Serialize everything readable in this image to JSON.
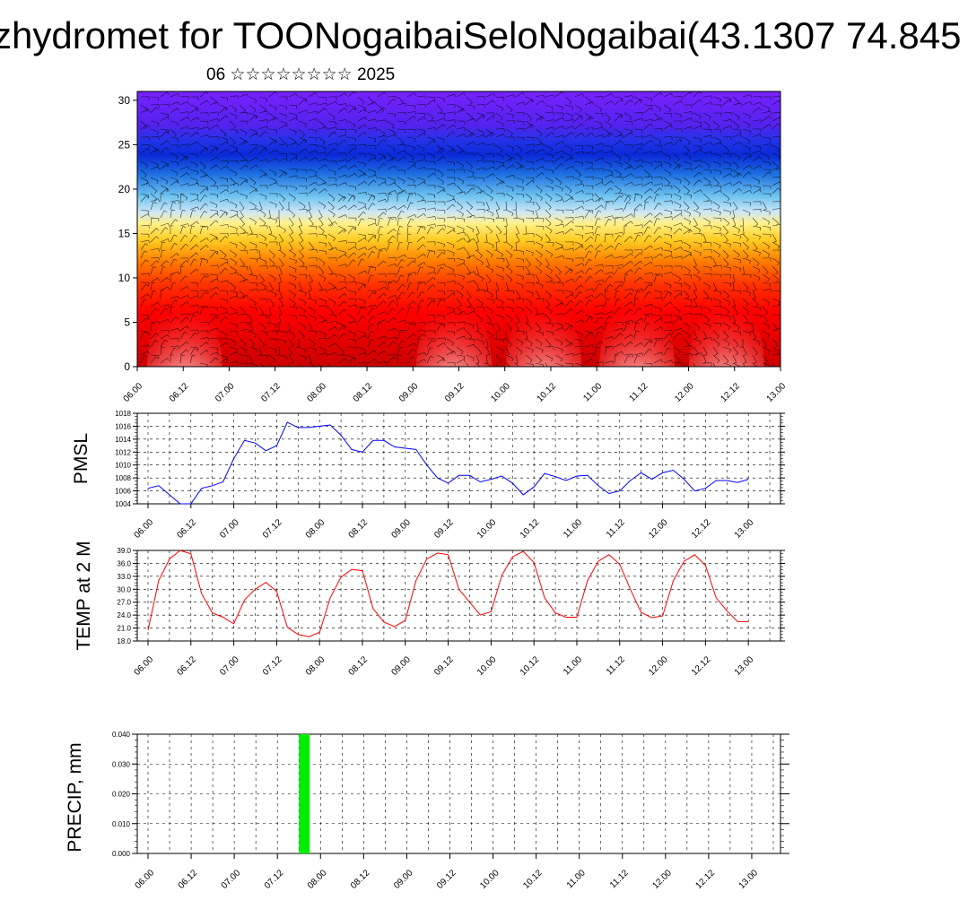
{
  "title": "zhydromet for TOONogaibaiSeloNogaibai(43.1307 74.845",
  "subtitle": "06 ☆☆☆☆☆☆☆☆ 2025",
  "colors": {
    "pmsl_line": "#0000ff",
    "temp_line": "#ff0000",
    "precip_bar": "#00ee00",
    "frame": "#000000",
    "grid": "#000000"
  },
  "time_ticks": [
    "06.00",
    "06.12",
    "07.00",
    "07.12",
    "08.00",
    "08.12",
    "09.00",
    "09.12",
    "10.00",
    "10.12",
    "11.00",
    "11.12",
    "12.00",
    "12.12",
    "13.00"
  ],
  "chart_data": [
    {
      "type": "heatmap",
      "name": "cross-section",
      "x_ticks": [
        "06.00",
        "06.12",
        "07.00",
        "07.12",
        "08.00",
        "08.12",
        "09.00",
        "09.12",
        "10.00",
        "10.12",
        "11.00",
        "11.12",
        "12.00",
        "12.12",
        "13.00"
      ],
      "y_ticks": [
        "0",
        "5",
        "10",
        "15",
        "20",
        "25",
        "30"
      ],
      "ylim": [
        0,
        31
      ],
      "xlim_hours": [
        0,
        168
      ],
      "wind_barbs": true
    },
    {
      "type": "line",
      "ylabel": "PMSL",
      "y_ticks": [
        "1004",
        "1006",
        "1008",
        "1010",
        "1012",
        "1014",
        "1016",
        "1018"
      ],
      "ylim": [
        1004,
        1018
      ],
      "x_hours": [
        0,
        3,
        6,
        9,
        12,
        15,
        18,
        21,
        24,
        27,
        30,
        33,
        36,
        39,
        42,
        45,
        48,
        51,
        54,
        57,
        60,
        63,
        66,
        69,
        72,
        75,
        78,
        81,
        84,
        87,
        90,
        93,
        96,
        99,
        102,
        105,
        108,
        111,
        114,
        117,
        120,
        123,
        126,
        129,
        132,
        135,
        138,
        141,
        144,
        147,
        150,
        153,
        156,
        159,
        162,
        165,
        168
      ],
      "values": [
        1006.4,
        1006.8,
        1005.4,
        1004.0,
        1004.0,
        1006.4,
        1006.8,
        1007.4,
        1011.0,
        1013.8,
        1013.4,
        1012.2,
        1013.0,
        1016.6,
        1015.8,
        1015.8,
        1016.0,
        1016.2,
        1014.6,
        1012.4,
        1012.0,
        1013.8,
        1013.8,
        1012.8,
        1012.6,
        1012.4,
        1010.0,
        1008.0,
        1007.2,
        1008.4,
        1008.4,
        1007.4,
        1007.8,
        1008.3,
        1007.2,
        1005.4,
        1006.6,
        1008.7,
        1008.2,
        1007.6,
        1008.3,
        1008.4,
        1006.8,
        1005.6,
        1006.0,
        1007.6,
        1008.8,
        1007.8,
        1008.8,
        1009.2,
        1007.8,
        1006.0,
        1006.4,
        1007.6,
        1007.6,
        1007.3,
        1007.8
      ]
    },
    {
      "type": "line",
      "ylabel": "TEMP at 2 M",
      "y_ticks": [
        "18.0",
        "21.0",
        "24.0",
        "27.0",
        "30.0",
        "33.0",
        "36.0",
        "39.0"
      ],
      "ylim": [
        18,
        39
      ],
      "x_hours": [
        0,
        3,
        6,
        9,
        12,
        15,
        18,
        21,
        24,
        27,
        30,
        33,
        36,
        39,
        42,
        45,
        48,
        51,
        54,
        57,
        60,
        63,
        66,
        69,
        72,
        75,
        78,
        81,
        84,
        87,
        90,
        93,
        96,
        99,
        102,
        105,
        108,
        111,
        114,
        117,
        120,
        123,
        126,
        129,
        132,
        135,
        138,
        141,
        144,
        147,
        150,
        153,
        156,
        159,
        162,
        165,
        168
      ],
      "values": [
        20.5,
        32.0,
        37.0,
        39.0,
        38.2,
        29.0,
        24.5,
        23.5,
        22.0,
        27.5,
        30.0,
        31.6,
        29.5,
        21.2,
        19.5,
        19.0,
        20.0,
        28.0,
        32.8,
        34.6,
        34.3,
        25.5,
        22.4,
        21.3,
        22.8,
        32.0,
        37.0,
        38.4,
        38.0,
        30.0,
        27.0,
        24.0,
        24.8,
        33.2,
        37.5,
        38.8,
        36.2,
        28.0,
        24.5,
        23.5,
        23.5,
        32.0,
        36.5,
        38.0,
        35.8,
        30.0,
        24.6,
        23.4,
        23.8,
        32.0,
        36.5,
        38.0,
        35.5,
        28.0,
        25.0,
        22.5,
        22.5
      ]
    },
    {
      "type": "bar",
      "ylabel": "PRECIP, mm",
      "y_ticks": [
        "0.000",
        "0.010",
        "0.020",
        "0.030",
        "0.040"
      ],
      "ylim": [
        0,
        0.04
      ],
      "bars": [
        {
          "x_hours": 42,
          "width_hours": 3,
          "value": 0.04
        }
      ]
    }
  ]
}
